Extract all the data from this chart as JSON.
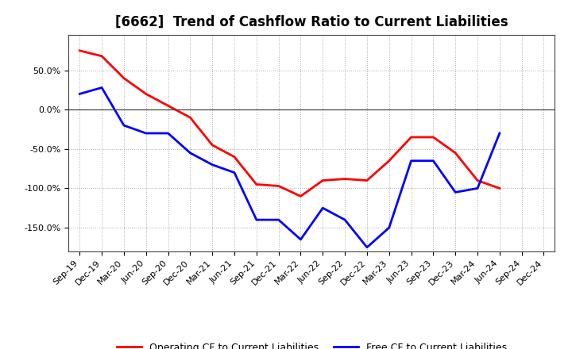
{
  "title": "[6662]  Trend of Cashflow Ratio to Current Liabilities",
  "x_labels": [
    "Sep-19",
    "Dec-19",
    "Mar-20",
    "Jun-20",
    "Sep-20",
    "Dec-20",
    "Mar-21",
    "Jun-21",
    "Sep-21",
    "Dec-21",
    "Mar-22",
    "Jun-22",
    "Sep-22",
    "Dec-22",
    "Mar-23",
    "Jun-23",
    "Sep-23",
    "Dec-23",
    "Mar-24",
    "Jun-24",
    "Sep-24",
    "Dec-24"
  ],
  "operating_cf": [
    75,
    68,
    40,
    20,
    5,
    -10,
    -45,
    -60,
    -95,
    -97,
    -110,
    -90,
    -88,
    -90,
    -65,
    -35,
    -35,
    -55,
    -90,
    -100,
    null,
    null
  ],
  "free_cf": [
    20,
    28,
    -20,
    -30,
    -30,
    -55,
    -70,
    -80,
    -140,
    -140,
    -165,
    -125,
    -140,
    -175,
    -150,
    -65,
    -65,
    -105,
    -100,
    -30,
    null,
    null
  ],
  "operating_color": "#FF0000",
  "free_color": "#0000FF",
  "ylim": [
    -180,
    95
  ],
  "yticks": [
    -150,
    -100,
    -50,
    0,
    50
  ],
  "ytick_labels": [
    "-150.0%",
    "-100.0%",
    "-50.0%",
    "0.0%",
    "50.0%"
  ],
  "bg_color": "#FFFFFF",
  "plot_bg_color": "#FFFFFF",
  "grid_color": "#AAAAAA",
  "legend_op": "Operating CF to Current Liabilities",
  "legend_free": "Free CF to Current Liabilities",
  "line_width": 2.0,
  "title_fontsize": 12,
  "tick_fontsize": 8
}
